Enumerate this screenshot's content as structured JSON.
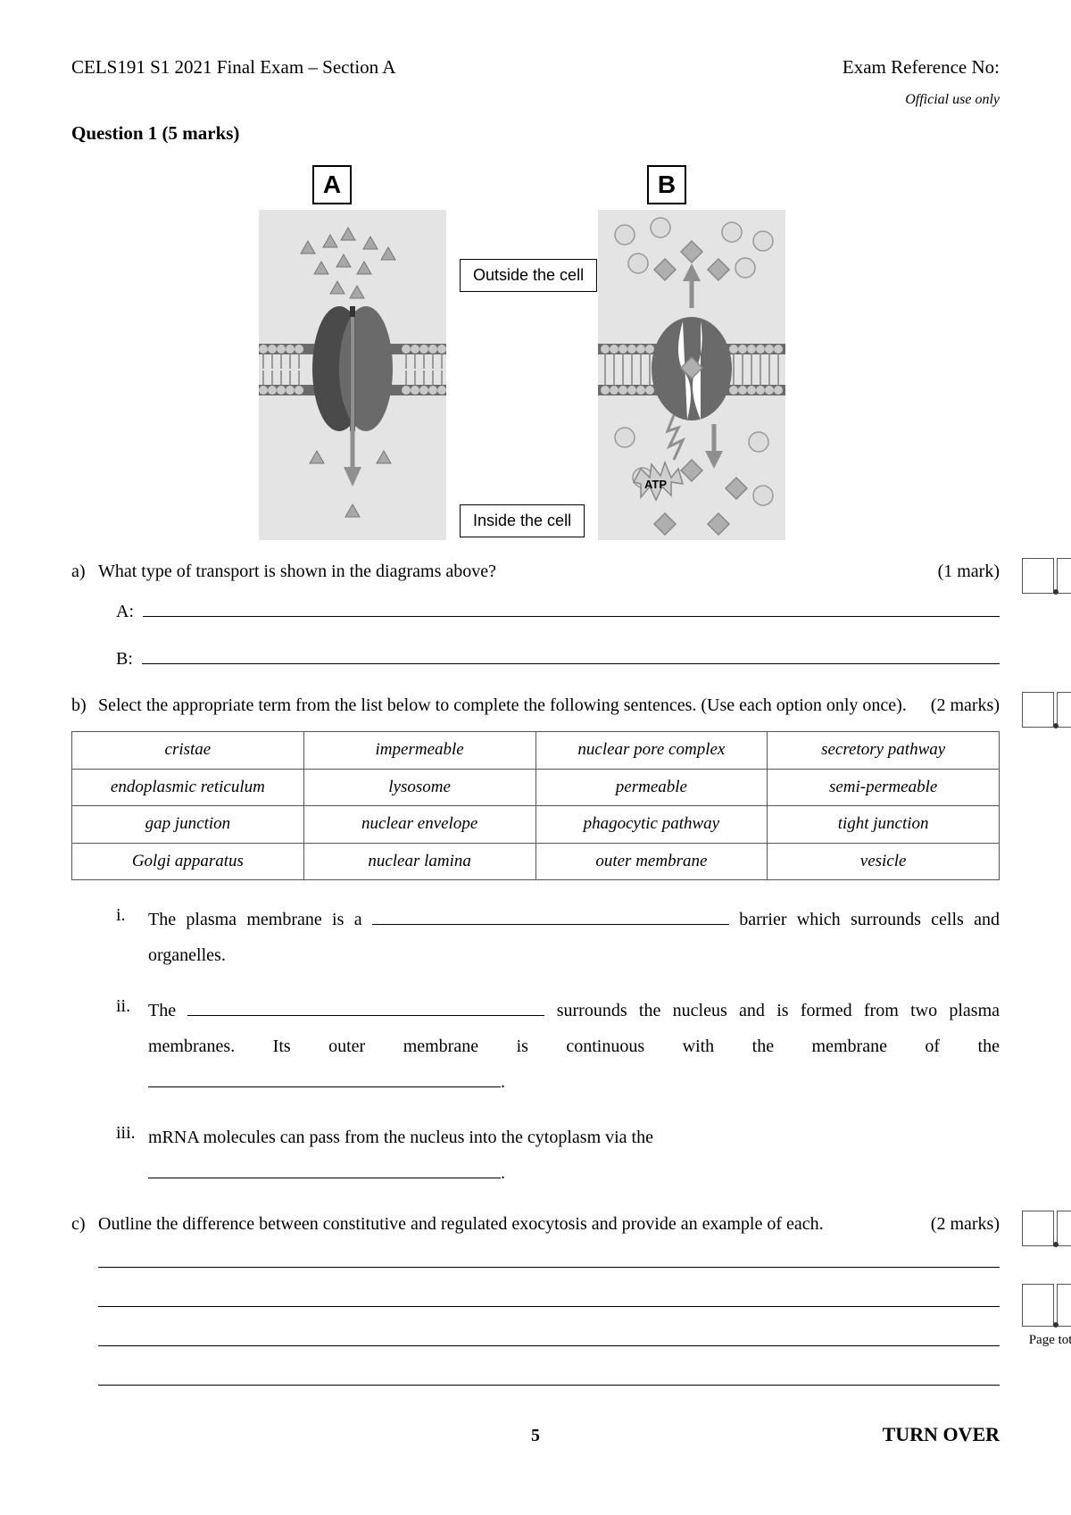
{
  "header": {
    "left": "CELS191 S1 2021 Final Exam – Section A",
    "right": "Exam Reference No:",
    "official_use": "Official use only"
  },
  "question": {
    "title": "Question 1 (5 marks)",
    "diagram": {
      "panel_a_label": "A",
      "panel_b_label": "B",
      "outside_label": "Outside the cell",
      "inside_label": "Inside the cell",
      "atp_label": "ATP",
      "panel_bg": "#e4e4e4",
      "membrane_dark": "#6b6b6b",
      "membrane_light": "#c9c9c9",
      "protein_dark": "#4a4a4a",
      "protein_mid": "#7a7a7a",
      "shape_fill": "#a8a8a8",
      "shape_circle": "#cfcfcf",
      "arrow_gray": "#8f8f8f"
    },
    "parts": {
      "a": {
        "letter": "a)",
        "text": "What type of transport is shown in the diagrams above?",
        "mark": "(1 mark)",
        "answers": {
          "a_label": "A:",
          "b_label": "B:"
        }
      },
      "b": {
        "letter": "b)",
        "text": "Select the appropriate term from the list below to complete the following sentences. (Use each option only once).",
        "mark": "(2 marks)",
        "terms": [
          [
            "cristae",
            "impermeable",
            "nuclear pore complex",
            "secretory pathway"
          ],
          [
            "endoplasmic reticulum",
            "lysosome",
            "permeable",
            "semi-permeable"
          ],
          [
            "gap junction",
            "nuclear envelope",
            "phagocytic pathway",
            "tight junction"
          ],
          [
            "Golgi apparatus",
            "nuclear lamina",
            "outer membrane",
            "vesicle"
          ]
        ],
        "sub": {
          "i": {
            "num": "i.",
            "pre": "The plasma membrane is a",
            "post": "barrier which surrounds cells and organelles.",
            "blank_w": 400
          },
          "ii": {
            "num": "ii.",
            "pre": "The",
            "mid1": "surrounds the nucleus and is formed from two plasma membranes. Its outer membrane is continuous with the membrane of the",
            "blank1_w": 400,
            "blank2_w": 395,
            "suffix": "."
          },
          "iii": {
            "num": "iii.",
            "text": "mRNA molecules can pass from the nucleus into the cytoplasm via the",
            "blank_w": 395,
            "suffix": "."
          }
        }
      },
      "c": {
        "letter": "c)",
        "text": "Outline the difference between constitutive and regulated exocytosis and provide an example of each.",
        "mark": "(2 marks)",
        "num_lines": 4
      }
    }
  },
  "footer": {
    "page_number": "5",
    "turn_over": "TURN OVER",
    "page_total_label": "Page total"
  }
}
